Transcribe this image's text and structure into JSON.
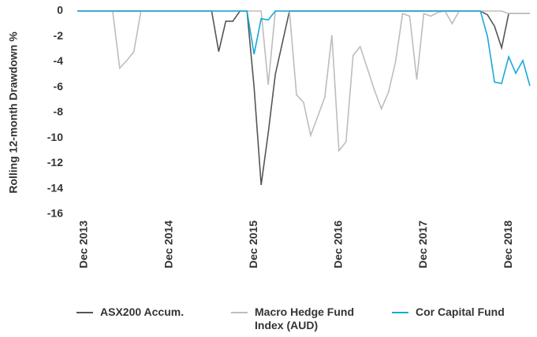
{
  "chart_data": {
    "type": "line",
    "y_label": "Rolling 12-month Drawdown %",
    "categories": [
      null,
      "Dec 2013",
      null,
      null,
      null,
      null,
      null,
      null,
      null,
      null,
      null,
      null,
      null,
      "Dec 2014",
      null,
      null,
      null,
      null,
      null,
      null,
      null,
      null,
      null,
      null,
      null,
      "Dec 2015",
      null,
      null,
      null,
      null,
      null,
      null,
      null,
      null,
      null,
      null,
      null,
      "Dec 2016",
      null,
      null,
      null,
      null,
      null,
      null,
      null,
      null,
      null,
      null,
      null,
      "Dec 2017",
      null,
      null,
      null,
      null,
      null,
      null,
      null,
      null,
      null,
      null,
      null,
      "Dec 2018",
      null,
      null,
      null
    ],
    "series": [
      {
        "name": "ASX200 Accum.",
        "color": "#555555",
        "values": [
          0,
          0,
          0,
          0,
          0,
          0,
          0,
          0,
          0,
          0,
          0,
          0,
          0,
          0,
          0,
          0,
          0,
          0,
          0,
          0,
          -3.2,
          -0.8,
          -0.8,
          0,
          0,
          -6,
          -13.7,
          -9.6,
          -5,
          -2.5,
          0,
          0,
          0,
          0,
          0,
          0,
          0,
          0,
          0,
          0,
          0,
          0,
          0,
          0,
          0,
          0,
          0,
          0,
          0,
          0,
          0,
          0,
          0,
          0,
          0,
          0,
          0,
          0,
          -0.3,
          -1.2,
          -2.9,
          -0.2,
          -0.2,
          -0.2,
          -0.2
        ]
      },
      {
        "name": "Macro Hedge Fund Index (AUD)",
        "color": "#bdbdbd",
        "values": [
          0,
          0,
          0,
          0,
          0,
          0,
          -4.5,
          -3.9,
          -3.2,
          0,
          0,
          0,
          0,
          0,
          0,
          0,
          0,
          0,
          0,
          0,
          0,
          0,
          0,
          0,
          0,
          0,
          0,
          -5.8,
          0,
          0,
          0,
          -6.6,
          -7.2,
          -9.8,
          -8.3,
          -6.8,
          -1.9,
          -11,
          -10.3,
          -3.5,
          -2.8,
          -4.5,
          -6.2,
          -7.7,
          -6.4,
          -4,
          -0.2,
          -0.4,
          -5.4,
          -0.2,
          -0.4,
          -0.1,
          0,
          -1,
          0,
          0,
          0,
          0,
          0,
          0,
          0,
          -0.2,
          -0.2,
          -0.2,
          -0.2
        ]
      },
      {
        "name": "Cor Capital Fund",
        "color": "#1aa7d9",
        "values": [
          0,
          0,
          0,
          0,
          0,
          0,
          0,
          0,
          0,
          0,
          0,
          0,
          0,
          0,
          0,
          0,
          0,
          0,
          0,
          0,
          0,
          0,
          0,
          0,
          0,
          -3.4,
          -0.6,
          -0.7,
          0,
          0,
          0,
          0,
          0,
          0,
          0,
          0,
          0,
          0,
          0,
          0,
          0,
          0,
          0,
          0,
          0,
          0,
          0,
          0,
          0,
          0,
          0,
          0,
          0,
          0,
          0,
          0,
          0,
          0,
          -2,
          -5.6,
          -5.7,
          -3.6,
          -4.9,
          -3.9,
          -5.9
        ]
      }
    ],
    "ylim": [
      -16,
      0
    ],
    "yticks": [
      0,
      -2,
      -4,
      -6,
      -8,
      -10,
      -12,
      -14,
      -16
    ],
    "grid": false
  }
}
